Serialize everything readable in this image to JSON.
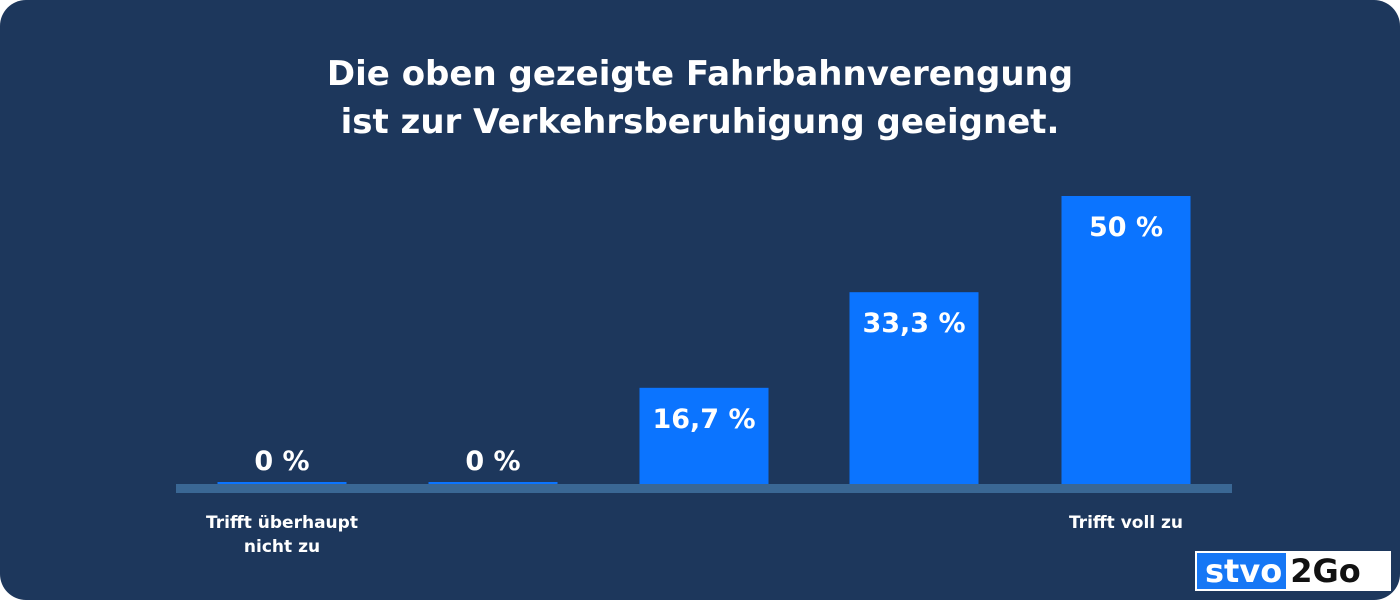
{
  "header": {
    "title_line1": "Die oben gezeigte Fahrbahnverengung",
    "title_line2": "ist zur Verkehrsberuhigung geeignet."
  },
  "logo": {
    "part1": "stvo",
    "part2": "2Go"
  },
  "colors": {
    "background": "#1d375c",
    "bar": "#0b74ff",
    "baseline": "#3a6794",
    "text": "#ffffff"
  },
  "chart_data": {
    "type": "bar",
    "title": "Die oben gezeigte Fahrbahnverengung ist zur Verkehrsberuhigung geeignet.",
    "categories": [
      "Trifft überhaupt nicht zu",
      "",
      "",
      "",
      "Trifft voll zu"
    ],
    "axis_labels": [
      "Trifft überhaupt\nnicht zu",
      "",
      "",
      "",
      "Trifft voll zu"
    ],
    "values": [
      0,
      0,
      16.7,
      33.3,
      50
    ],
    "data_labels": [
      "0 %",
      "0 %",
      "16,7 %",
      "33,3 %",
      "50 %"
    ],
    "unit": "%",
    "ylim": [
      0,
      50
    ],
    "grid": false,
    "legend": "none"
  }
}
